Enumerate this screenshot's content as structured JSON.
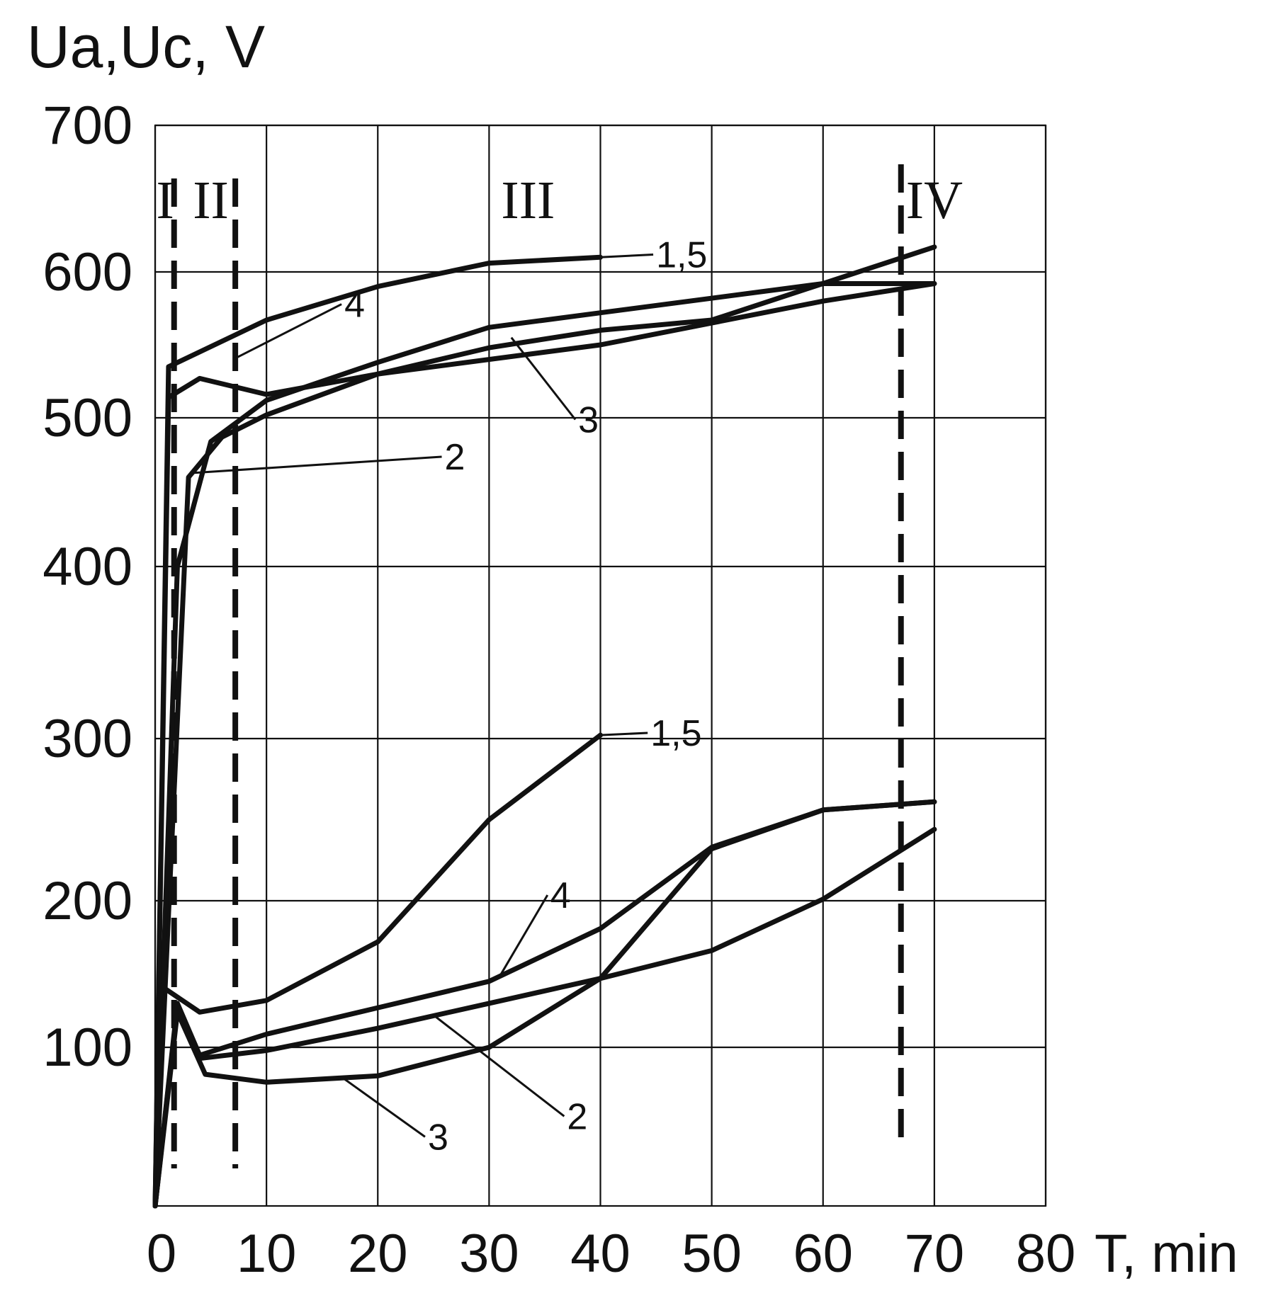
{
  "chart_data": {
    "type": "line",
    "title": "",
    "ylabel": "Ua,Uc, V",
    "xlabel": "T, min",
    "xlim": [
      0,
      80
    ],
    "ylim": [
      0,
      700
    ],
    "x_ticks": [
      "0",
      "10",
      "20",
      "30",
      "40",
      "50",
      "60",
      "70",
      "80"
    ],
    "y_ticks": [
      {
        "value": 100,
        "label": "100"
      },
      {
        "value": 200,
        "label": "200"
      },
      {
        "value": 300,
        "label": "300"
      },
      {
        "value": 400,
        "label": "400"
      },
      {
        "value": 500,
        "label": "500"
      },
      {
        "value": 600,
        "label": "600"
      },
      {
        "value": 700,
        "label": "700"
      }
    ],
    "grid": true,
    "stage_boundaries": [
      1.7,
      7.2,
      67.0
    ],
    "stage_labels": [
      {
        "label": "I",
        "x": 0.9
      },
      {
        "label": "II",
        "x": 5.0
      },
      {
        "label": "III",
        "x": 33.5
      },
      {
        "label": "IV",
        "x": 70.0
      }
    ],
    "series": [
      {
        "label": "1,5",
        "group": "Ua",
        "points": [
          [
            0,
            0
          ],
          [
            1.2,
            535
          ],
          [
            10,
            567
          ],
          [
            20,
            590
          ],
          [
            30,
            606
          ],
          [
            40,
            610
          ]
        ]
      },
      {
        "label": "2",
        "group": "Ua",
        "points": [
          [
            0,
            0
          ],
          [
            3,
            460
          ],
          [
            6,
            487
          ],
          [
            10,
            502
          ],
          [
            20,
            530
          ],
          [
            40,
            550
          ],
          [
            60,
            580
          ],
          [
            70,
            592
          ]
        ]
      },
      {
        "label": "3",
        "group": "Ua",
        "points": [
          [
            0,
            0
          ],
          [
            2,
            400
          ],
          [
            5,
            484
          ],
          [
            10,
            512
          ],
          [
            20,
            538
          ],
          [
            30,
            562
          ],
          [
            40,
            572
          ],
          [
            60,
            592
          ],
          [
            70,
            592
          ]
        ]
      },
      {
        "label": "4",
        "group": "Ua",
        "points": [
          [
            0,
            0
          ],
          [
            1.2,
            514
          ],
          [
            4,
            527
          ],
          [
            10,
            516
          ],
          [
            20,
            530
          ],
          [
            30,
            548
          ],
          [
            40,
            560
          ],
          [
            50,
            567
          ],
          [
            70,
            617
          ]
        ]
      },
      {
        "label": "1,5",
        "group": "Uc",
        "points": [
          [
            0,
            0
          ],
          [
            0.5,
            142
          ],
          [
            4,
            124
          ],
          [
            10,
            132
          ],
          [
            20,
            172
          ],
          [
            30,
            250
          ],
          [
            40,
            302
          ]
        ]
      },
      {
        "label": "2",
        "group": "Uc",
        "points": [
          [
            0,
            0
          ],
          [
            2,
            128
          ],
          [
            4,
            93
          ],
          [
            10,
            98
          ],
          [
            20,
            113
          ],
          [
            30,
            130
          ],
          [
            40,
            147
          ],
          [
            50,
            166
          ],
          [
            60,
            201
          ],
          [
            70,
            244
          ]
        ]
      },
      {
        "label": "3",
        "group": "Uc",
        "points": [
          [
            0,
            0
          ],
          [
            2,
            124
          ],
          [
            4.5,
            83
          ],
          [
            10,
            78
          ],
          [
            20,
            82
          ],
          [
            30,
            100
          ],
          [
            40,
            147
          ],
          [
            50,
            232
          ],
          [
            60,
            256
          ],
          [
            70,
            261
          ]
        ]
      },
      {
        "label": "4",
        "group": "Uc",
        "points": [
          [
            0,
            0
          ],
          [
            2,
            130
          ],
          [
            4,
            95
          ],
          [
            10,
            109
          ],
          [
            20,
            127
          ],
          [
            30,
            145
          ],
          [
            40,
            181
          ],
          [
            50,
            233
          ],
          [
            60,
            256
          ],
          [
            70,
            261
          ]
        ]
      }
    ],
    "curve_labels": [
      {
        "text": "1,5",
        "anchor": [
          40,
          610
        ],
        "pos": [
          45,
          608
        ]
      },
      {
        "text": "4",
        "anchor": [
          7,
          540
        ],
        "pos": [
          17,
          574
        ]
      },
      {
        "text": "2",
        "anchor": [
          3.5,
          463
        ],
        "pos": [
          26,
          470
        ]
      },
      {
        "text": "3",
        "anchor": [
          32,
          555
        ],
        "pos": [
          38,
          495
        ]
      },
      {
        "text": "1,5",
        "anchor": [
          40,
          302
        ],
        "pos": [
          44.5,
          300
        ]
      },
      {
        "text": "4",
        "anchor": [
          31,
          149
        ],
        "pos": [
          35.5,
          200
        ]
      },
      {
        "text": "2",
        "anchor": [
          25,
          122
        ],
        "pos": [
          37,
          53
        ]
      },
      {
        "text": "3",
        "anchor": [
          17,
          80
        ],
        "pos": [
          24.5,
          40
        ]
      }
    ]
  }
}
